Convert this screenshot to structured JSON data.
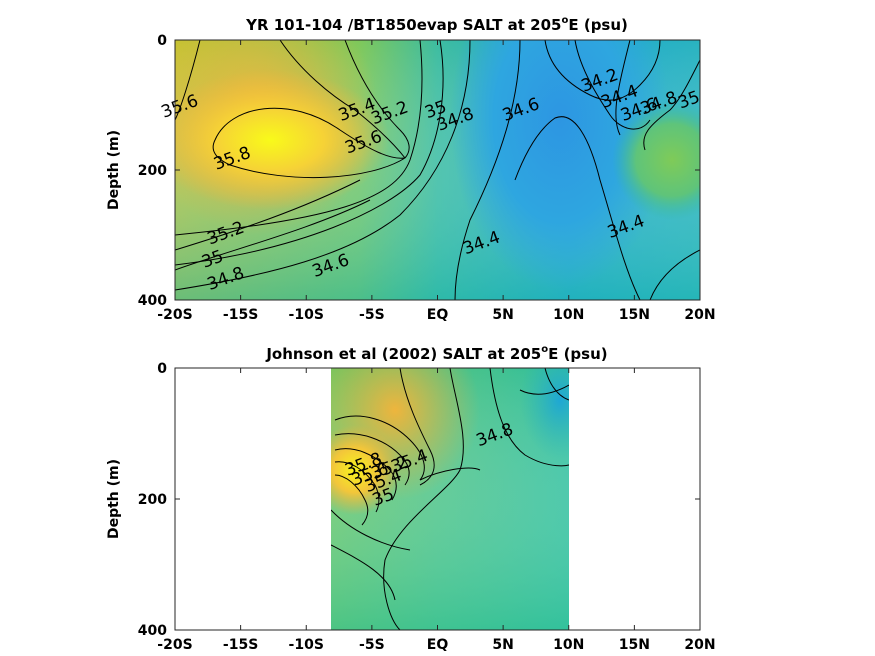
{
  "chart_data": [
    {
      "type": "heatmap",
      "title": "YR 101-104 /BT1850evap SALT at 205",
      "title_sup": "o",
      "title_suffix": "E (psu)",
      "xlabel": "",
      "ylabel": "Depth (m)",
      "x_ticks": [
        "-20S",
        "-15S",
        "-10S",
        "-5S",
        "EQ",
        "5N",
        "10N",
        "15N",
        "20N"
      ],
      "x_tick_values": [
        -20,
        -15,
        -10,
        -5,
        0,
        5,
        10,
        15,
        20
      ],
      "y_ticks": [
        "0",
        "200",
        "400"
      ],
      "y_tick_values": [
        0,
        200,
        400
      ],
      "xlim": [
        -20,
        20
      ],
      "ylim": [
        400,
        0
      ],
      "data_extent": [
        -20,
        20
      ],
      "colormap": "parula",
      "color_range": [
        34.1,
        35.9
      ],
      "contour_labels": [
        {
          "text": "35.6",
          "lat": -19.5,
          "depth": 110
        },
        {
          "text": "35.8",
          "lat": -15.5,
          "depth": 190
        },
        {
          "text": "35.4",
          "lat": -6.0,
          "depth": 115
        },
        {
          "text": "35.6",
          "lat": -5.5,
          "depth": 165
        },
        {
          "text": "35.2",
          "lat": -3.5,
          "depth": 120
        },
        {
          "text": "35",
          "lat": 0.0,
          "depth": 115
        },
        {
          "text": "34.8",
          "lat": 1.5,
          "depth": 130
        },
        {
          "text": "34.6",
          "lat": 6.5,
          "depth": 115
        },
        {
          "text": "34.2",
          "lat": 12.5,
          "depth": 70
        },
        {
          "text": "34.4",
          "lat": 14.0,
          "depth": 95
        },
        {
          "text": "34.6",
          "lat": 15.5,
          "depth": 115
        },
        {
          "text": "34.8",
          "lat": 17.0,
          "depth": 105
        },
        {
          "text": "35",
          "lat": 19.3,
          "depth": 100
        },
        {
          "text": "35.2",
          "lat": -16.0,
          "depth": 305
        },
        {
          "text": "35",
          "lat": -17.0,
          "depth": 345
        },
        {
          "text": "34.8",
          "lat": -16.0,
          "depth": 375
        },
        {
          "text": "34.6",
          "lat": -8.0,
          "depth": 355
        },
        {
          "text": "34.4",
          "lat": 3.5,
          "depth": 320
        },
        {
          "text": "34.4",
          "lat": 14.5,
          "depth": 295
        }
      ]
    },
    {
      "type": "heatmap",
      "title": "Johnson et al (2002) SALT at 205",
      "title_sup": "o",
      "title_suffix": "E (psu)",
      "xlabel": "",
      "ylabel": "Depth (m)",
      "x_ticks": [
        "-20S",
        "-15S",
        "-10S",
        "-5S",
        "EQ",
        "5N",
        "10N",
        "15N",
        "20N"
      ],
      "x_tick_values": [
        -20,
        -15,
        -10,
        -5,
        0,
        5,
        10,
        15,
        20
      ],
      "y_ticks": [
        "0",
        "200",
        "400"
      ],
      "y_tick_values": [
        0,
        200,
        400
      ],
      "xlim": [
        -20,
        20
      ],
      "ylim": [
        400,
        0
      ],
      "data_extent": [
        -8,
        10
      ],
      "colormap": "parula",
      "color_range": [
        34.1,
        35.9
      ],
      "contour_labels": [
        {
          "text": "34.8",
          "lat": 4.5,
          "depth": 110
        },
        {
          "text": "35.4",
          "lat": -2.0,
          "depth": 150
        },
        {
          "text": "35.2",
          "lat": -3.5,
          "depth": 160
        },
        {
          "text": "35.8",
          "lat": -5.5,
          "depth": 155
        },
        {
          "text": "35.6",
          "lat": -5.0,
          "depth": 170
        },
        {
          "text": "35.4",
          "lat": -4.0,
          "depth": 180
        },
        {
          "text": "35",
          "lat": -4.0,
          "depth": 205
        }
      ]
    }
  ]
}
